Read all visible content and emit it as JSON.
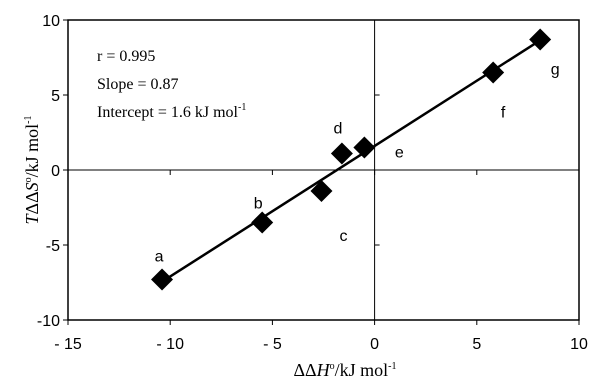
{
  "chart_data": {
    "type": "scatter",
    "title": "",
    "xlabel": {
      "prefix": "ΔΔ",
      "var": "H",
      "deg": "o",
      "unit": "/kJ mol",
      "exp": "-1"
    },
    "ylabel": {
      "var": "T",
      "prefix": "ΔΔ",
      "var2": "S",
      "deg": "o",
      "unit": "/kJ mol",
      "exp": "-1"
    },
    "xlim": [
      -15,
      10
    ],
    "ylim": [
      -10,
      10
    ],
    "xticks": [
      -15,
      -10,
      -5,
      0,
      5,
      10
    ],
    "yticks": [
      -10,
      -5,
      0,
      5,
      10
    ],
    "xtick_labels": [
      "- 15",
      "- 10",
      "- 5",
      "0",
      "5",
      "10"
    ],
    "ytick_labels": [
      "-10",
      "-5",
      "0",
      "5",
      "10"
    ],
    "grid": false,
    "series": [
      {
        "points": [
          {
            "label": "a",
            "x": -10.4,
            "y": -7.3
          },
          {
            "label": "b",
            "x": -5.5,
            "y": -3.5
          },
          {
            "label": "c",
            "x": -2.6,
            "y": -1.4
          },
          {
            "label": "d",
            "x": -1.6,
            "y": 1.1
          },
          {
            "label": "e",
            "x": -0.5,
            "y": 1.5
          },
          {
            "label": "f",
            "x": 5.8,
            "y": 6.5
          },
          {
            "label": "g",
            "x": 8.1,
            "y": 8.7
          }
        ]
      }
    ],
    "fit_line": {
      "slope": 0.87,
      "intercept": 1.6,
      "x_range": [
        -10.4,
        8.1
      ]
    },
    "annotations": {
      "r": "r = 0.995",
      "slope": "Slope = 0.87",
      "intercept_text": "Intercept = 1.6 kJ mol",
      "intercept_exp": "-1"
    }
  }
}
